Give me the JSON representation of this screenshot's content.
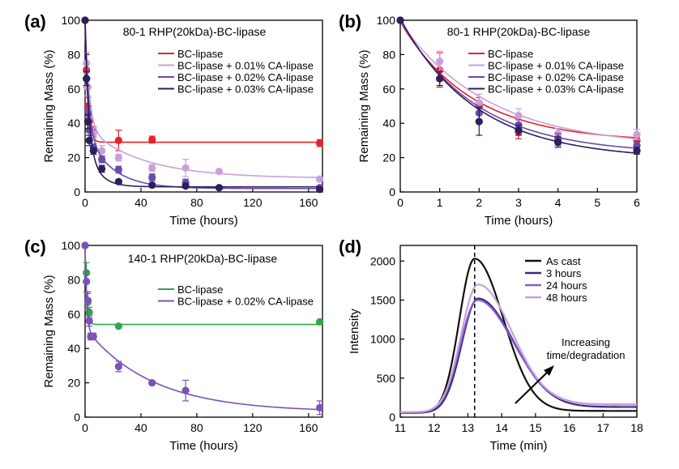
{
  "colors": {
    "red": "#e8202a",
    "lightpurple": "#c9a0dc",
    "purple": "#6a4ba8",
    "darkpurple": "#2d1e5e",
    "green": "#2ea84a",
    "violet": "#7b52b8",
    "black": "#000000",
    "cast_black": "#111111",
    "h3": "#3b2a87",
    "h24": "#8a5cc4",
    "h48": "#c6a2d8"
  },
  "chart_data": [
    {
      "panel": "(a)",
      "type": "scatter",
      "title": "80-1 RHP(20kDa)-BC-lipase",
      "xlabel": "Time (hours)",
      "ylabel": "Remaining Mass (%)",
      "xlim": [
        0,
        170
      ],
      "ylim": [
        0,
        100
      ],
      "xticks": [
        0,
        40,
        80,
        120,
        160
      ],
      "yticks": [
        0,
        20,
        40,
        60,
        80,
        100
      ],
      "legend_position": "top-right",
      "series": [
        {
          "name": "BC-lipase",
          "color": "red",
          "points": [
            [
              0,
              100
            ],
            [
              1,
              71
            ],
            [
              2,
              50
            ],
            [
              3,
              41
            ],
            [
              6,
              35
            ],
            [
              24,
              30
            ],
            [
              48,
              30.5
            ],
            [
              168,
              28.5
            ]
          ],
          "err": [
            0,
            10,
            5,
            4,
            3,
            6,
            2,
            2
          ],
          "fit": {
            "plateau": 29,
            "k": 0.55
          }
        },
        {
          "name": "BC-lipase + 0.01% CA-lipase",
          "color": "lightpurple",
          "points": [
            [
              0,
              100
            ],
            [
              1,
              75
            ],
            [
              2,
              61
            ],
            [
              3,
              44
            ],
            [
              6,
              34
            ],
            [
              12,
              24
            ],
            [
              24,
              20
            ],
            [
              48,
              14
            ],
            [
              72,
              14
            ],
            [
              96,
              12
            ],
            [
              168,
              7.5
            ]
          ],
          "err": [
            0,
            6,
            5,
            4,
            3,
            3,
            2,
            2,
            5,
            1,
            1
          ],
          "fit": {
            "A1": 62,
            "k1": 0.35,
            "A2": 30,
            "k2": 0.025,
            "plateau": 8
          }
        },
        {
          "name": "BC-lipase + 0.02% CA-lipase",
          "color": "purple",
          "points": [
            [
              0,
              100
            ],
            [
              1,
              66
            ],
            [
              2,
              46
            ],
            [
              3,
              36
            ],
            [
              6,
              26
            ],
            [
              12,
              19
            ],
            [
              24,
              13
            ],
            [
              48,
              8.5
            ],
            [
              72,
              5.5
            ],
            [
              96,
              2.5
            ],
            [
              168,
              2.5
            ]
          ],
          "err": [
            0,
            4,
            4,
            3,
            2,
            2,
            2,
            2,
            2,
            1,
            1
          ],
          "fit": {
            "A1": 64,
            "k1": 0.4,
            "A2": 34,
            "k2": 0.055,
            "plateau": 2
          }
        },
        {
          "name": "BC-lipase + 0.03% CA-lipase",
          "color": "darkpurple",
          "points": [
            [
              0,
              100
            ],
            [
              1,
              66
            ],
            [
              2,
              41
            ],
            [
              3,
              30
            ],
            [
              6,
              24
            ],
            [
              12,
              13.5
            ],
            [
              24,
              6
            ],
            [
              48,
              4
            ],
            [
              72,
              3.5
            ],
            [
              96,
              2.5
            ],
            [
              168,
              1.5
            ]
          ],
          "err": [
            0,
            4,
            4,
            3,
            2,
            2,
            1,
            1,
            1,
            1,
            1
          ],
          "fit": {
            "A1": 70,
            "k1": 0.4,
            "A2": 27,
            "k2": 0.12,
            "plateau": 3
          }
        }
      ]
    },
    {
      "panel": "(b)",
      "type": "scatter",
      "title": "80-1 RHP(20kDa)-BC-lipase",
      "xlabel": "Time (hours)",
      "ylabel": "Remaining Mass (%)",
      "xlim": [
        0,
        6
      ],
      "ylim": [
        0,
        100
      ],
      "xticks": [
        0,
        1,
        2,
        3,
        4,
        5,
        6
      ],
      "yticks": [
        0,
        20,
        40,
        60,
        80,
        100
      ],
      "legend_position": "top-right",
      "series": [
        {
          "name": "BC-lipase",
          "color": "red",
          "points": [
            [
              0,
              100
            ],
            [
              1,
              71
            ],
            [
              2,
              50
            ],
            [
              3,
              35
            ],
            [
              4,
              30
            ],
            [
              6,
              30
            ]
          ],
          "err": [
            0,
            10,
            5,
            4,
            3,
            2
          ],
          "fit": {
            "A": 70,
            "k": 0.55,
            "plateau": 29
          }
        },
        {
          "name": "BC-lipase + 0.01% CA-lipase",
          "color": "lightpurple",
          "points": [
            [
              0,
              100
            ],
            [
              1,
              76
            ],
            [
              2,
              52
            ],
            [
              3,
              44.5
            ],
            [
              4,
              34
            ],
            [
              6,
              33.5
            ]
          ],
          "err": [
            0,
            6,
            5,
            4,
            3,
            3
          ],
          "fit": {
            "A": 73,
            "k": 0.45,
            "plateau": 26
          }
        },
        {
          "name": "BC-lipase + 0.02% CA-lipase",
          "color": "purple",
          "points": [
            [
              0,
              100
            ],
            [
              1,
              66
            ],
            [
              2,
              46
            ],
            [
              3,
              39
            ],
            [
              4,
              31
            ],
            [
              6,
              27
            ]
          ],
          "err": [
            0,
            4,
            4,
            3,
            3,
            2
          ],
          "fit": {
            "A": 78,
            "k": 0.52,
            "plateau": 22
          }
        },
        {
          "name": "BC-lipase + 0.03% CA-lipase",
          "color": "darkpurple",
          "points": [
            [
              0,
              100
            ],
            [
              1,
              66
            ],
            [
              2,
              41
            ],
            [
              3,
              36
            ],
            [
              4,
              29
            ],
            [
              6,
              24
            ]
          ],
          "err": [
            0,
            4,
            8,
            3,
            3,
            2
          ],
          "fit": {
            "A": 82,
            "k": 0.52,
            "plateau": 19
          }
        }
      ]
    },
    {
      "panel": "(c)",
      "type": "scatter",
      "title": "140-1 RHP(20kDa)-BC-lipase",
      "xlabel": "Time (hours)",
      "ylabel": "Remaining Mass (%)",
      "xlim": [
        0,
        170
      ],
      "ylim": [
        0,
        100
      ],
      "xticks": [
        0,
        40,
        80,
        120,
        160
      ],
      "yticks": [
        0,
        20,
        40,
        60,
        80,
        100
      ],
      "legend_position": "center-right",
      "series": [
        {
          "name": "BC-lipase",
          "color": "green",
          "points": [
            [
              0,
              100
            ],
            [
              1,
              84
            ],
            [
              2,
              67
            ],
            [
              3,
              61
            ],
            [
              24,
              53
            ],
            [
              168,
              55.5
            ]
          ],
          "err": [
            0,
            6,
            5,
            3,
            1,
            1
          ],
          "fit": {
            "A1": 46,
            "k1": 0.9,
            "A2": 0,
            "k2": 0.1,
            "plateau": 54
          }
        },
        {
          "name": "BC-lipase + 0.02% CA-lipase",
          "color": "violet",
          "points": [
            [
              0,
              100
            ],
            [
              1,
              79
            ],
            [
              2,
              68
            ],
            [
              3,
              56
            ],
            [
              4,
              47
            ],
            [
              6,
              47
            ],
            [
              24,
              29.5
            ],
            [
              48,
              20
            ],
            [
              72,
              15.5
            ],
            [
              168,
              5.5
            ]
          ],
          "err": [
            0,
            6,
            5,
            3,
            2,
            2,
            3,
            1,
            6,
            4
          ],
          "fit": {
            "A1": 48,
            "k1": 0.9,
            "A2": 49,
            "k2": 0.021,
            "plateau": 3
          }
        }
      ]
    },
    {
      "panel": "(d)",
      "type": "line",
      "title": "",
      "xlabel": "Time (min)",
      "ylabel": "Intensity",
      "xlim": [
        11,
        18
      ],
      "ylim": [
        0,
        2200
      ],
      "xticks": [
        11,
        12,
        13,
        14,
        15,
        16,
        17,
        18
      ],
      "yticks": [
        0,
        500,
        1000,
        1500,
        2000
      ],
      "legend_position": "top-right",
      "dashed_vline_x": 13.2,
      "annotation": [
        "Increasing",
        "time/degradation"
      ],
      "series": [
        {
          "name": "As cast",
          "color": "cast_black",
          "peak_x": 13.2,
          "peak_y": 2030,
          "sl": 0.45,
          "sr": 0.85,
          "baseline_l": 55,
          "baseline_r": 80
        },
        {
          "name": "3 hours",
          "color": "h3",
          "peak_x": 13.3,
          "peak_y": 1520,
          "sl": 0.48,
          "sr": 1.05,
          "baseline_l": 55,
          "baseline_r": 130
        },
        {
          "name": "24 hours",
          "color": "h24",
          "peak_x": 13.28,
          "peak_y": 1500,
          "sl": 0.5,
          "sr": 1.05,
          "baseline_l": 60,
          "baseline_r": 160
        },
        {
          "name": "48 hours",
          "color": "h48",
          "peak_x": 13.3,
          "peak_y": 1700,
          "sl": 0.5,
          "sr": 1.0,
          "baseline_l": 65,
          "baseline_r": 165
        }
      ]
    }
  ]
}
